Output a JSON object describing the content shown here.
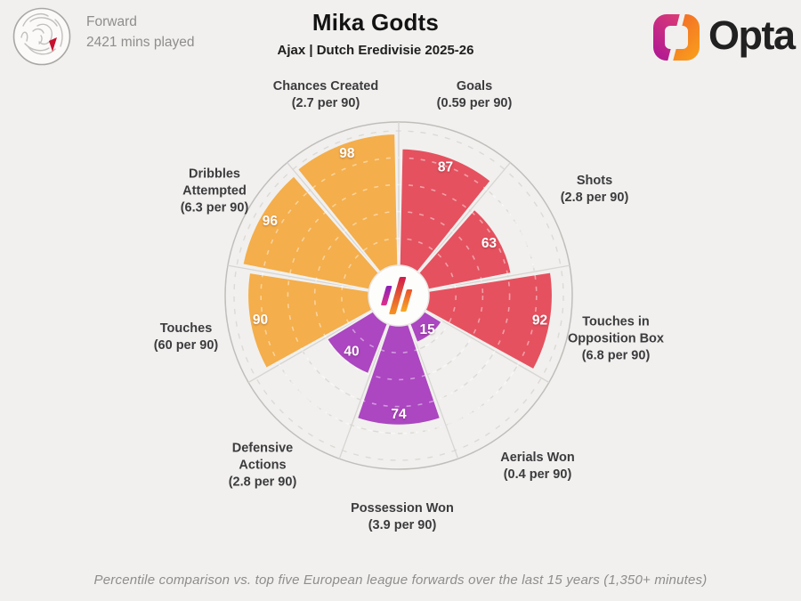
{
  "header": {
    "position": "Forward",
    "minutes": "2421 mins played",
    "title": "Mika Godts",
    "subtitle": "Ajax | Dutch Eredivisie 2025-26",
    "brand": "Opta",
    "club_logo": "ajax-crest"
  },
  "chart_data": {
    "type": "polar-bar",
    "title": "Mika Godts percentile pizza chart",
    "max": 100,
    "rings": [
      20,
      40,
      60,
      80,
      100
    ],
    "center_logo": "opta-stripes",
    "legend": "none",
    "series": [
      {
        "label": "Goals",
        "sub": "(0.59 per 90)",
        "value": 87,
        "color": "#E5515F"
      },
      {
        "label": "Shots",
        "sub": "(2.8 per 90)",
        "value": 63,
        "color": "#E5515F"
      },
      {
        "label": "Touches in Opposition Box",
        "sub": "(6.8 per 90)",
        "value": 92,
        "color": "#E5515F"
      },
      {
        "label": "Aerials Won",
        "sub": "(0.4 per 90)",
        "value": 15,
        "color": "#AC46C1"
      },
      {
        "label": "Possession Won",
        "sub": "(3.9 per 90)",
        "value": 74,
        "color": "#AC46C1"
      },
      {
        "label": "Defensive Actions",
        "sub": "(2.8 per 90)",
        "value": 40,
        "color": "#AC46C1"
      },
      {
        "label": "Touches",
        "sub": "(60 per 90)",
        "value": 90,
        "color": "#F4AE4B"
      },
      {
        "label": "Dribbles Attempted",
        "sub": "(6.3 per 90)",
        "value": 96,
        "color": "#F4AE4B"
      },
      {
        "label": "Chances Created",
        "sub": "(2.7 per 90)",
        "value": 98,
        "color": "#F4AE4B"
      }
    ]
  },
  "footer": {
    "caption": "Percentile comparison vs. top five European league forwards over the last 15 years (1,350+ minutes)"
  },
  "colors": {
    "background": "#F1F0EE",
    "attacking_red": "#E5515F",
    "possession_yellow": "#F4AE4B",
    "defending_purple": "#AC46C1",
    "grid": "#DCDAD6",
    "text_dark": "#3C3C3E",
    "text_muted": "#8E8D8B"
  }
}
